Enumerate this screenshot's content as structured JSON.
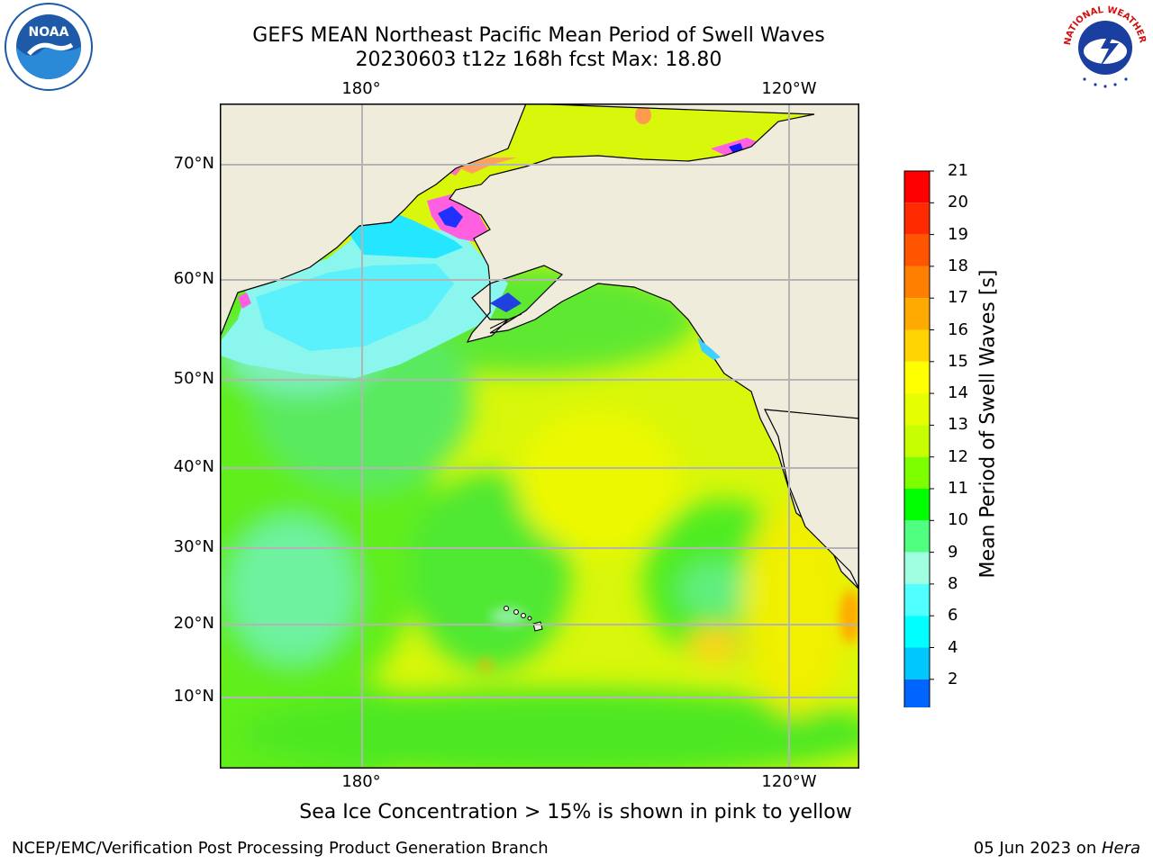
{
  "title": {
    "line1": "GEFS MEAN Northeast Pacific Mean Period of Swell Waves",
    "line2": "20230603 t12z 168h fcst   Max: 18.80"
  },
  "map": {
    "lon_labels": [
      "180°",
      "120°W"
    ],
    "lat_labels": [
      "70°N",
      "60°N",
      "50°N",
      "40°N",
      "30°N",
      "20°N",
      "10°N"
    ],
    "land_color": "#efecdc",
    "grid_color": "#b4b4b4"
  },
  "colorbar": {
    "label": "Mean Period of Swell Waves [s]",
    "ticks": [
      "21",
      "20",
      "19",
      "18",
      "17",
      "16",
      "15",
      "14",
      "13",
      "12",
      "11",
      "10",
      "9",
      "8",
      "6",
      "4",
      "2"
    ],
    "colors_top_to_bottom": [
      "#ff0000",
      "#ff2a00",
      "#ff5500",
      "#ff7f00",
      "#ffaa00",
      "#ffd400",
      "#ffff00",
      "#e6ff00",
      "#c8ff00",
      "#7dff00",
      "#00ff00",
      "#50ff80",
      "#a0ffe0",
      "#50ffff",
      "#00ffff",
      "#00c8ff",
      "#0064ff"
    ],
    "extend_color": "#0000ff"
  },
  "footer": {
    "note": "Sea Ice Concentration > 15% is shown in pink to yellow",
    "left": "NCEP/EMC/Verification Post Processing Product Generation Branch",
    "date": "05 Jun 2023 on ",
    "machine": "Hera"
  },
  "logos": {
    "noaa_text": "NOAA",
    "nws_text": "NATIONAL WEATHER SERVICE"
  }
}
